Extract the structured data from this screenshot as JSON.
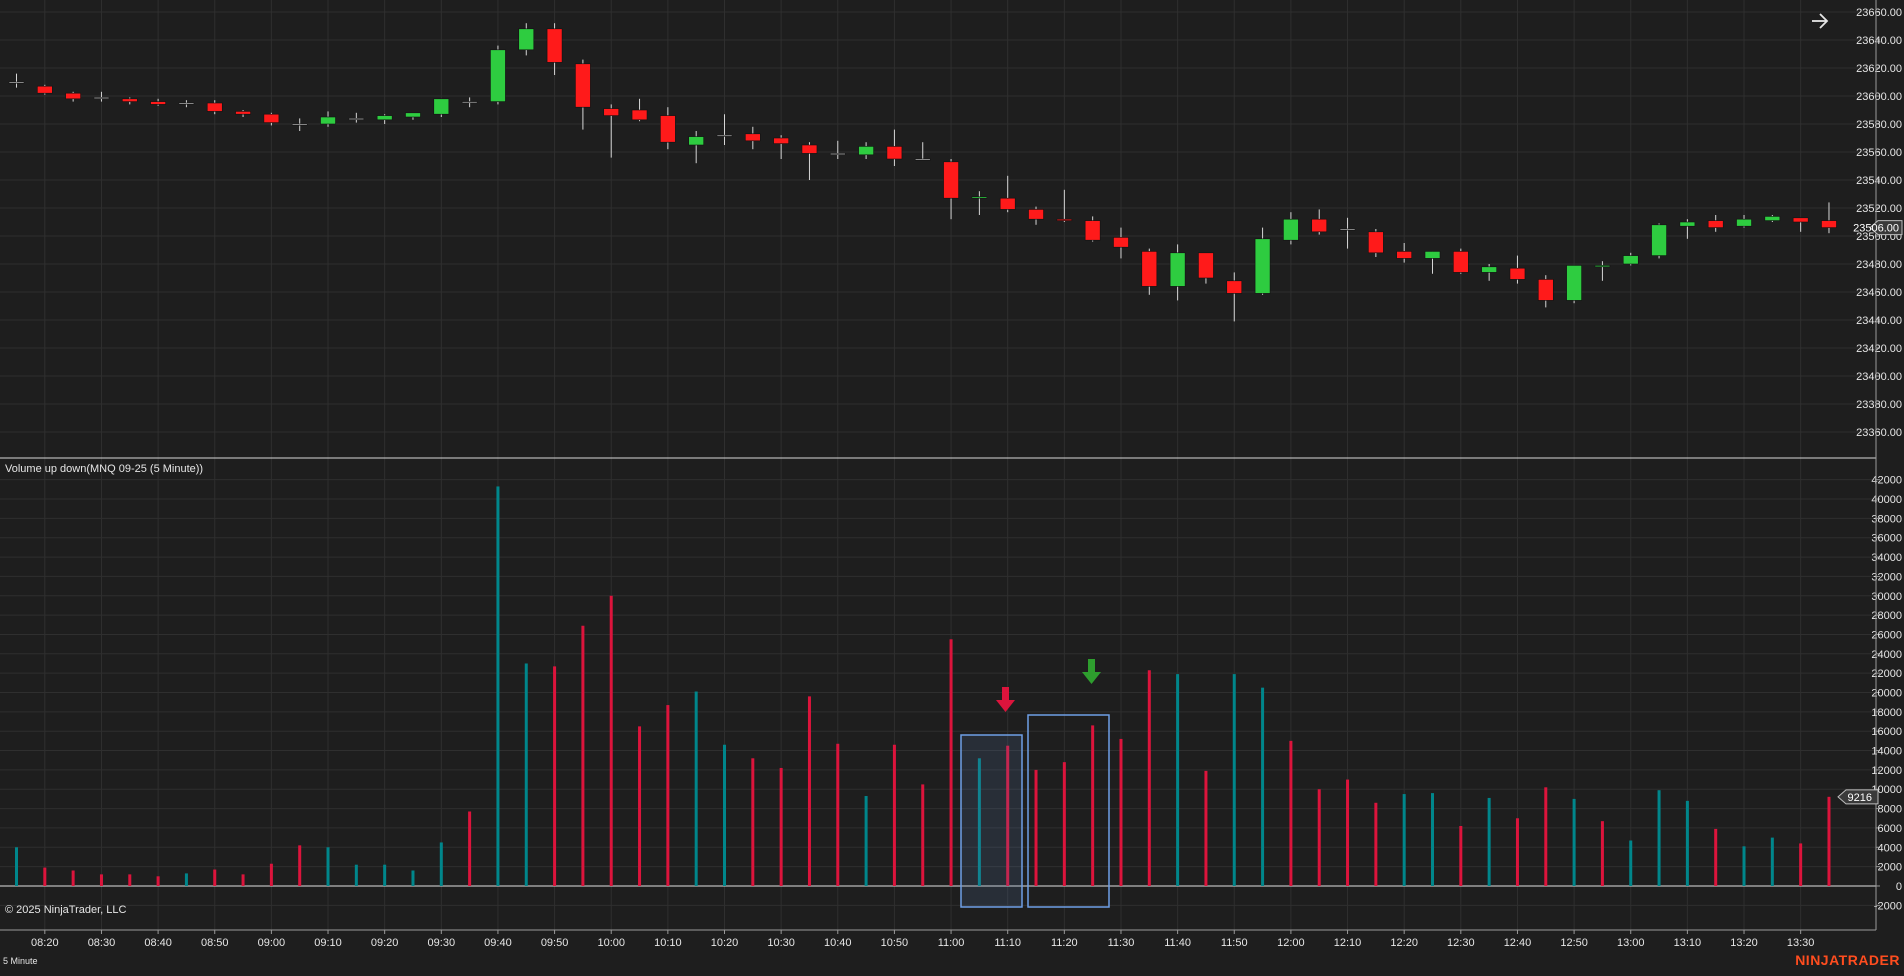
{
  "window": {
    "indicator_label": "Volume up down(MNQ 09-25 (5 Minute))",
    "copyright": "© 2025 NinjaTrader, LLC",
    "timeframe": "5 Minute",
    "brand": "NINJATRADER",
    "nav_arrow_icon": "arrow-right-icon"
  },
  "colors": {
    "background": "#1e1e1e",
    "grid": "#2f2f2f",
    "up_candle": "#2ecc40",
    "down_candle": "#ff1a1a",
    "volume_up": "#00868b",
    "volume_down": "#dc143c",
    "brand": "#ff4d1f",
    "selection_box": "#6f9fe6"
  },
  "chart_data": [
    {
      "type": "candlestick",
      "symbol": "MNQ 09-25",
      "interval": "5 Minute",
      "ylim": [
        23340,
        23660
      ],
      "yticks": [
        23360,
        23380,
        23400,
        23420,
        23440,
        23460,
        23480,
        23500,
        23520,
        23540,
        23560,
        23580,
        23600,
        23620,
        23640,
        23660
      ],
      "last_price_label": "23506.00",
      "xlabels": [
        "08:20",
        "08:30",
        "08:40",
        "08:50",
        "09:00",
        "09:10",
        "09:20",
        "09:30",
        "09:40",
        "09:50",
        "10:00",
        "10:10",
        "10:20",
        "10:30",
        "10:40",
        "10:50",
        "11:00",
        "11:10",
        "11:20",
        "11:30",
        "11:40",
        "11:50",
        "12:00",
        "12:10",
        "12:20",
        "12:30",
        "12:40",
        "12:50",
        "13:00",
        "13:10",
        "13:20",
        "13:30"
      ],
      "candles": [
        {
          "t": "08:15",
          "o": 23610,
          "h": 23616,
          "l": 23606,
          "c": 23610
        },
        {
          "t": "08:20",
          "o": 23607,
          "h": 23608,
          "l": 23601,
          "c": 23602
        },
        {
          "t": "08:25",
          "o": 23602,
          "h": 23603,
          "l": 23596,
          "c": 23598
        },
        {
          "t": "08:30",
          "o": 23599,
          "h": 23603,
          "l": 23596,
          "c": 23599
        },
        {
          "t": "08:35",
          "o": 23598,
          "h": 23599,
          "l": 23594,
          "c": 23596
        },
        {
          "t": "08:40",
          "o": 23596,
          "h": 23598,
          "l": 23593,
          "c": 23594
        },
        {
          "t": "08:45",
          "o": 23595,
          "h": 23597,
          "l": 23592,
          "c": 23595
        },
        {
          "t": "08:50",
          "o": 23595,
          "h": 23597,
          "l": 23587,
          "c": 23589
        },
        {
          "t": "08:55",
          "o": 23589,
          "h": 23590,
          "l": 23585,
          "c": 23587
        },
        {
          "t": "09:00",
          "o": 23587,
          "h": 23588,
          "l": 23579,
          "c": 23581
        },
        {
          "t": "09:05",
          "o": 23580,
          "h": 23584,
          "l": 23575,
          "c": 23580
        },
        {
          "t": "09:10",
          "o": 23580,
          "h": 23589,
          "l": 23578,
          "c": 23585
        },
        {
          "t": "09:15",
          "o": 23584,
          "h": 23588,
          "l": 23581,
          "c": 23584
        },
        {
          "t": "09:20",
          "o": 23583,
          "h": 23587,
          "l": 23580,
          "c": 23586
        },
        {
          "t": "09:25",
          "o": 23585,
          "h": 23588,
          "l": 23583,
          "c": 23588
        },
        {
          "t": "09:30",
          "o": 23587,
          "h": 23598,
          "l": 23585,
          "c": 23598
        },
        {
          "t": "09:35",
          "o": 23596,
          "h": 23599,
          "l": 23592,
          "c": 23596
        },
        {
          "t": "09:40",
          "o": 23596,
          "h": 23636,
          "l": 23594,
          "c": 23633
        },
        {
          "t": "09:45",
          "o": 23633,
          "h": 23652,
          "l": 23629,
          "c": 23648
        },
        {
          "t": "09:50",
          "o": 23648,
          "h": 23652,
          "l": 23615,
          "c": 23624
        },
        {
          "t": "09:55",
          "o": 23623,
          "h": 23626,
          "l": 23576,
          "c": 23592
        },
        {
          "t": "10:00",
          "o": 23591,
          "h": 23594,
          "l": 23556,
          "c": 23586
        },
        {
          "t": "10:05",
          "o": 23590,
          "h": 23598,
          "l": 23582,
          "c": 23583
        },
        {
          "t": "10:10",
          "o": 23586,
          "h": 23592,
          "l": 23562,
          "c": 23567
        },
        {
          "t": "10:15",
          "o": 23565,
          "h": 23575,
          "l": 23552,
          "c": 23571
        },
        {
          "t": "10:20",
          "o": 23572,
          "h": 23587,
          "l": 23565,
          "c": 23572
        },
        {
          "t": "10:25",
          "o": 23573,
          "h": 23578,
          "l": 23562,
          "c": 23568
        },
        {
          "t": "10:30",
          "o": 23570,
          "h": 23572,
          "l": 23555,
          "c": 23566
        },
        {
          "t": "10:35",
          "o": 23565,
          "h": 23567,
          "l": 23540,
          "c": 23559
        },
        {
          "t": "10:40",
          "o": 23559,
          "h": 23568,
          "l": 23555,
          "c": 23559
        },
        {
          "t": "10:45",
          "o": 23558,
          "h": 23567,
          "l": 23555,
          "c": 23564
        },
        {
          "t": "10:50",
          "o": 23564,
          "h": 23576,
          "l": 23550,
          "c": 23555
        },
        {
          "t": "10:55",
          "o": 23555,
          "h": 23567,
          "l": 23554,
          "c": 23555
        },
        {
          "t": "11:00",
          "o": 23553,
          "h": 23555,
          "l": 23512,
          "c": 23527
        },
        {
          "t": "11:05",
          "o": 23527,
          "h": 23532,
          "l": 23515,
          "c": 23528
        },
        {
          "t": "11:10",
          "o": 23527,
          "h": 23543,
          "l": 23517,
          "c": 23519
        },
        {
          "t": "11:15",
          "o": 23519,
          "h": 23521,
          "l": 23508,
          "c": 23512
        },
        {
          "t": "11:20",
          "o": 23512,
          "h": 23533,
          "l": 23510,
          "c": 23511
        },
        {
          "t": "11:25",
          "o": 23511,
          "h": 23514,
          "l": 23496,
          "c": 23497
        },
        {
          "t": "11:30",
          "o": 23499,
          "h": 23506,
          "l": 23484,
          "c": 23492
        },
        {
          "t": "11:35",
          "o": 23489,
          "h": 23491,
          "l": 23458,
          "c": 23464
        },
        {
          "t": "11:40",
          "o": 23464,
          "h": 23494,
          "l": 23454,
          "c": 23488
        },
        {
          "t": "11:45",
          "o": 23488,
          "h": 23488,
          "l": 23466,
          "c": 23470
        },
        {
          "t": "11:50",
          "o": 23468,
          "h": 23474,
          "l": 23439,
          "c": 23459
        },
        {
          "t": "11:55",
          "o": 23459,
          "h": 23506,
          "l": 23458,
          "c": 23498
        },
        {
          "t": "12:00",
          "o": 23497,
          "h": 23517,
          "l": 23494,
          "c": 23512
        },
        {
          "t": "12:05",
          "o": 23512,
          "h": 23519,
          "l": 23501,
          "c": 23503
        },
        {
          "t": "12:10",
          "o": 23505,
          "h": 23513,
          "l": 23491,
          "c": 23505
        },
        {
          "t": "12:15",
          "o": 23503,
          "h": 23505,
          "l": 23485,
          "c": 23488
        },
        {
          "t": "12:20",
          "o": 23489,
          "h": 23495,
          "l": 23481,
          "c": 23484
        },
        {
          "t": "12:25",
          "o": 23484,
          "h": 23489,
          "l": 23473,
          "c": 23489
        },
        {
          "t": "12:30",
          "o": 23489,
          "h": 23491,
          "l": 23473,
          "c": 23474
        },
        {
          "t": "12:35",
          "o": 23474,
          "h": 23480,
          "l": 23468,
          "c": 23478
        },
        {
          "t": "12:40",
          "o": 23477,
          "h": 23486,
          "l": 23466,
          "c": 23469
        },
        {
          "t": "12:45",
          "o": 23469,
          "h": 23472,
          "l": 23449,
          "c": 23454
        },
        {
          "t": "12:50",
          "o": 23454,
          "h": 23479,
          "l": 23452,
          "c": 23479
        },
        {
          "t": "12:55",
          "o": 23478,
          "h": 23482,
          "l": 23468,
          "c": 23479
        },
        {
          "t": "13:00",
          "o": 23480,
          "h": 23488,
          "l": 23479,
          "c": 23486
        },
        {
          "t": "13:05",
          "o": 23486,
          "h": 23509,
          "l": 23484,
          "c": 23508
        },
        {
          "t": "13:10",
          "o": 23507,
          "h": 23512,
          "l": 23498,
          "c": 23510
        },
        {
          "t": "13:15",
          "o": 23511,
          "h": 23515,
          "l": 23503,
          "c": 23506
        },
        {
          "t": "13:20",
          "o": 23507,
          "h": 23515,
          "l": 23506,
          "c": 23512
        },
        {
          "t": "13:25",
          "o": 23511,
          "h": 23515,
          "l": 23510,
          "c": 23514
        },
        {
          "t": "13:30",
          "o": 23513,
          "h": 23513,
          "l": 23503,
          "c": 23510
        },
        {
          "t": "13:35",
          "o": 23511,
          "h": 23524,
          "l": 23502,
          "c": 23506
        }
      ]
    },
    {
      "type": "bar",
      "title": "Volume up down(MNQ 09-25 (5 Minute))",
      "ylim": [
        -3000,
        43000
      ],
      "yticks": [
        -2000,
        0,
        2000,
        4000,
        6000,
        8000,
        10000,
        12000,
        14000,
        16000,
        18000,
        20000,
        22000,
        24000,
        26000,
        28000,
        30000,
        32000,
        34000,
        36000,
        38000,
        40000,
        42000
      ],
      "last_value_label": "9216",
      "categories": [
        "08:15",
        "08:20",
        "08:25",
        "08:30",
        "08:35",
        "08:40",
        "08:45",
        "08:50",
        "08:55",
        "09:00",
        "09:05",
        "09:10",
        "09:15",
        "09:20",
        "09:25",
        "09:30",
        "09:35",
        "09:40",
        "09:45",
        "09:50",
        "09:55",
        "10:00",
        "10:05",
        "10:10",
        "10:15",
        "10:20",
        "10:25",
        "10:30",
        "10:35",
        "10:40",
        "10:45",
        "10:50",
        "10:55",
        "11:00",
        "11:05",
        "11:10",
        "11:15",
        "11:20",
        "11:25",
        "11:30",
        "11:35",
        "11:40",
        "11:45",
        "11:50",
        "11:55",
        "12:00",
        "12:05",
        "12:10",
        "12:15",
        "12:20",
        "12:25",
        "12:30",
        "12:35",
        "12:40",
        "12:45",
        "12:50",
        "12:55",
        "13:00",
        "13:05",
        "13:10",
        "13:15",
        "13:20",
        "13:25",
        "13:30",
        "13:35"
      ],
      "values": [
        4000,
        1900,
        1600,
        1200,
        1200,
        1000,
        1300,
        1700,
        1200,
        2300,
        4200,
        4000,
        2200,
        2200,
        1600,
        4500,
        7700,
        41300,
        23000,
        22700,
        26900,
        30000,
        16500,
        18700,
        20100,
        14600,
        13200,
        12200,
        19600,
        14700,
        9300,
        14600,
        10500,
        25500,
        13200,
        14500,
        12000,
        12800,
        16600,
        15200,
        22300,
        21900,
        11900,
        21900,
        20500,
        15000,
        10000,
        11000,
        8600,
        9500,
        9600,
        6200,
        9100,
        7000,
        10200,
        9000,
        6700,
        4700,
        9900,
        8800,
        5900,
        4100,
        5000,
        4400,
        9216
      ],
      "direction": [
        "up",
        "down",
        "down",
        "down",
        "down",
        "down",
        "up",
        "down",
        "down",
        "down",
        "down",
        "up",
        "up",
        "up",
        "up",
        "up",
        "down",
        "up",
        "up",
        "down",
        "down",
        "down",
        "down",
        "down",
        "up",
        "up",
        "down",
        "down",
        "down",
        "down",
        "up",
        "down",
        "down",
        "down",
        "up",
        "down",
        "down",
        "down",
        "down",
        "down",
        "down",
        "up",
        "down",
        "up",
        "up",
        "down",
        "down",
        "down",
        "down",
        "up",
        "up",
        "down",
        "up",
        "down",
        "down",
        "up",
        "down",
        "up",
        "up",
        "up",
        "down",
        "up",
        "up",
        "down",
        "down"
      ]
    }
  ]
}
